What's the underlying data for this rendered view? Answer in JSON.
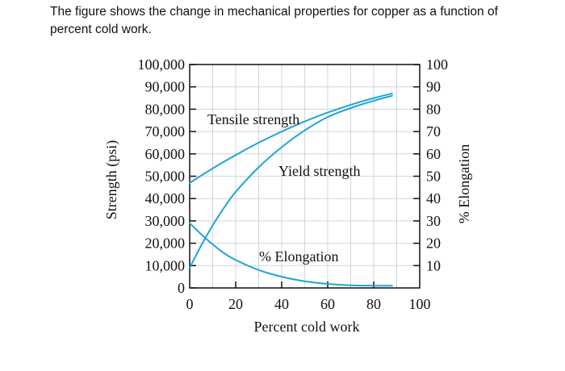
{
  "caption": {
    "line1": "The figure shows the change in mechanical properties for copper as a function of",
    "line2": "percent cold work."
  },
  "chart_data": {
    "type": "line",
    "xlabel": "Percent cold work",
    "ylabel": "Strength (psi)",
    "y2label": "% Elongation",
    "xlim": [
      0,
      100
    ],
    "ylim": [
      0,
      100000
    ],
    "y2lim": [
      0,
      100
    ],
    "x_ticks": [
      "0",
      "20",
      "40",
      "60",
      "80",
      "100"
    ],
    "y_ticks": [
      "0",
      "10,000",
      "20,000",
      "30,000",
      "40,000",
      "50,000",
      "60,000",
      "70,000",
      "80,000",
      "90,000",
      "100,000"
    ],
    "y2_ticks": [
      "10",
      "20",
      "30",
      "40",
      "50",
      "60",
      "70",
      "80",
      "90",
      "100"
    ],
    "grid": true,
    "line_color": "#1fa3d8",
    "series": [
      {
        "name": "Tensile strength",
        "axis": "left",
        "x": [
          0,
          10,
          20,
          30,
          40,
          50,
          60,
          70,
          80,
          88
        ],
        "y": [
          47000,
          53500,
          59500,
          65000,
          70000,
          74500,
          78500,
          82000,
          85000,
          87000
        ]
      },
      {
        "name": "Yield strength",
        "axis": "left",
        "x": [
          0,
          5,
          10,
          15,
          20,
          30,
          40,
          50,
          60,
          70,
          80,
          88
        ],
        "y": [
          9000,
          19000,
          28000,
          36000,
          43000,
          54000,
          63000,
          70500,
          76500,
          80500,
          83800,
          86000
        ]
      },
      {
        "name": "% Elongation",
        "axis": "right",
        "x": [
          0,
          5,
          10,
          15,
          20,
          30,
          40,
          50,
          60,
          70,
          80,
          88
        ],
        "y": [
          29,
          24,
          19.5,
          15.5,
          12.5,
          8,
          5,
          3,
          1.8,
          1.2,
          1,
          1
        ]
      }
    ]
  }
}
